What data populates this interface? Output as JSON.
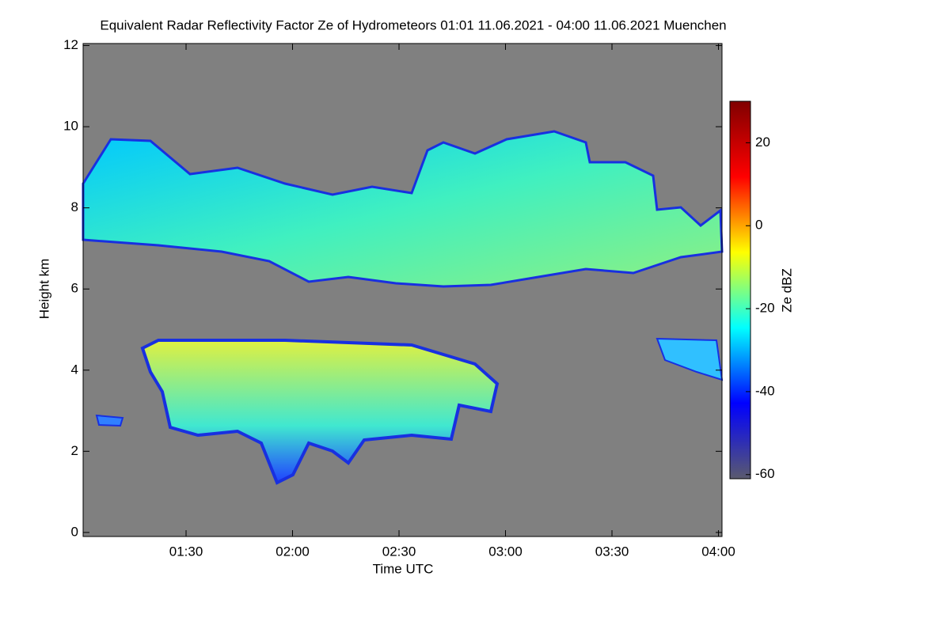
{
  "chart_data": {
    "type": "heatmap",
    "title": "Equivalent Radar Reflectivity Factor Ze of Hydrometeors   01:01 11.06.2021 - 04:00 11.06.2021 Muenchen",
    "x_label": "Time UTC",
    "y_label": "Height km",
    "xlim": [
      61,
      241
    ],
    "xticks": [
      {
        "value": 90,
        "label": "01:30"
      },
      {
        "value": 120,
        "label": "02:00"
      },
      {
        "value": 150,
        "label": "02:30"
      },
      {
        "value": 180,
        "label": "03:00"
      },
      {
        "value": 210,
        "label": "03:30"
      },
      {
        "value": 240,
        "label": "04:00"
      }
    ],
    "ylim": [
      -0.1,
      12.05
    ],
    "yticks": [
      0,
      2,
      4,
      6,
      8,
      10,
      12
    ],
    "colorbar": {
      "label": "Ze dBZ",
      "lim": [
        -61,
        30
      ],
      "ticks": [
        -60,
        -40,
        -20,
        0,
        20
      ],
      "colors": [
        "#5a5a6e",
        "#0000ff",
        "#00ffff",
        "#ffff00",
        "#ff0000",
        "#800000"
      ]
    },
    "background": "#808080"
  }
}
